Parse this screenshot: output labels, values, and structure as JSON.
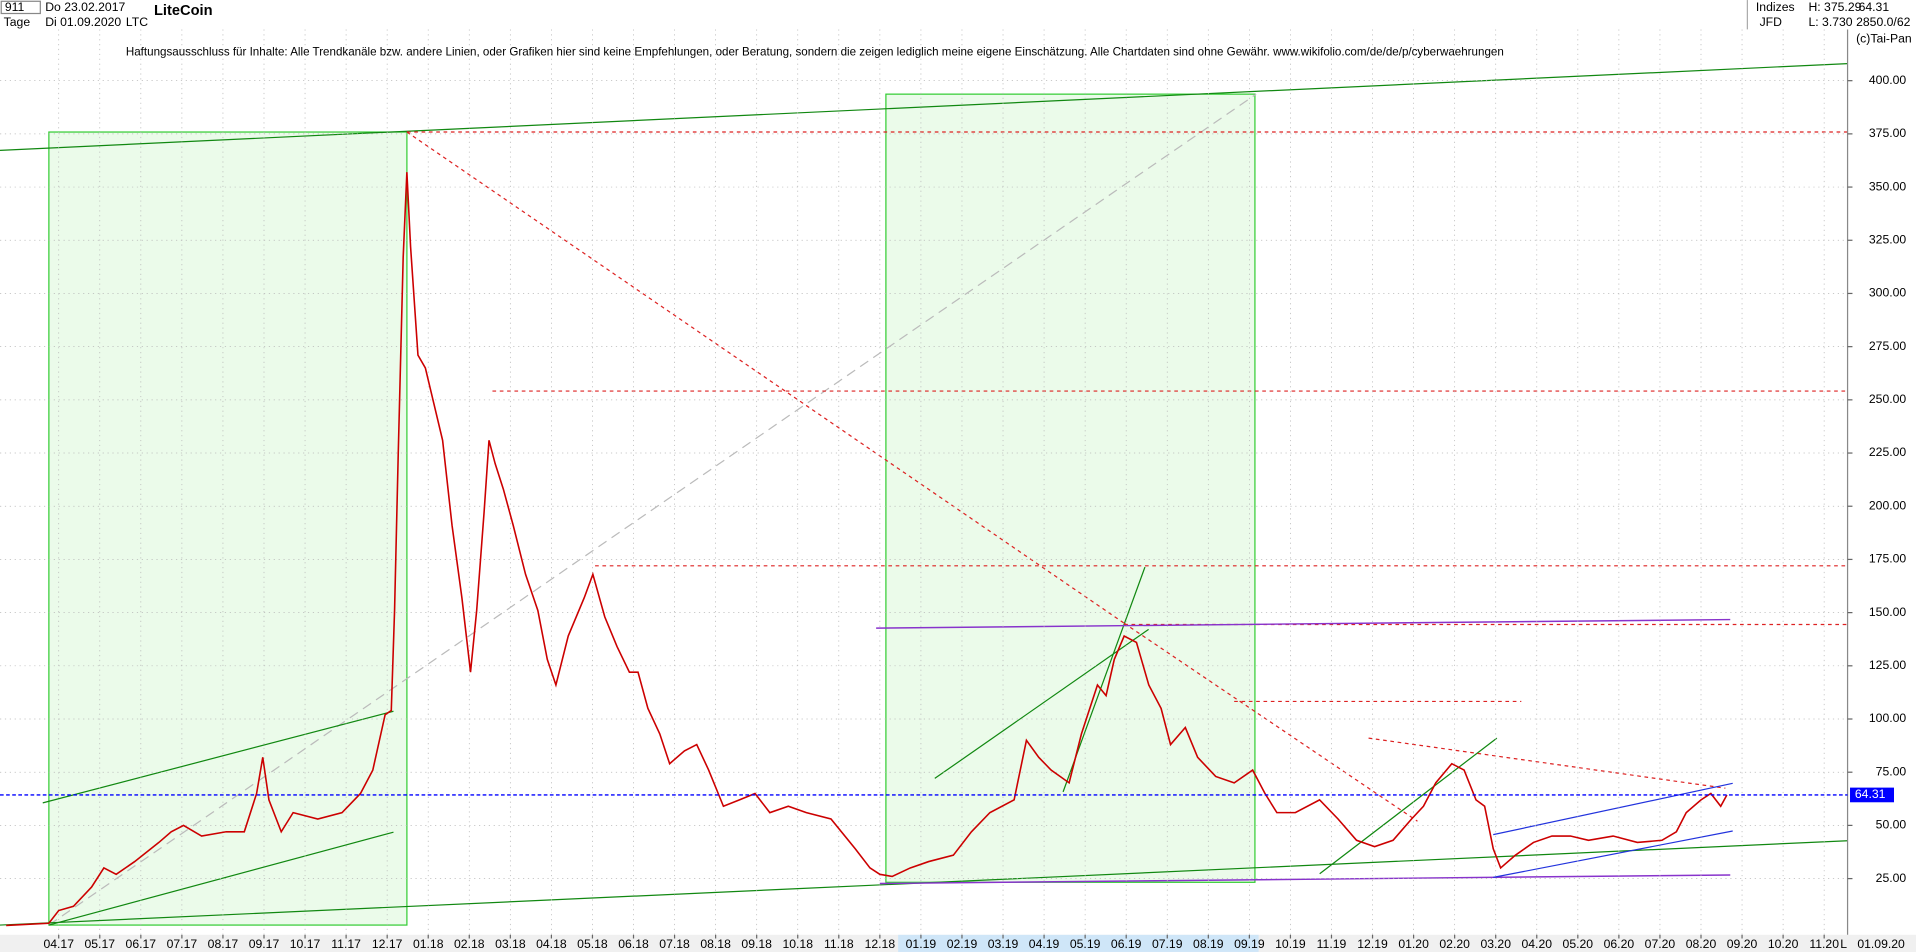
{
  "chart_data": {
    "type": "line",
    "title": "LiteCoin",
    "symbol": "LTC",
    "info": {
      "id": "911",
      "start": "Do 23.02.2017",
      "period": "Tage",
      "end": "Di 01.09.2020",
      "group": "Indizes",
      "source": "JFD",
      "high": "H: 375.29",
      "low": "L: 3.730",
      "last": "64.31",
      "size": "2850.0/62",
      "copyright": "(c)Tai-Pan",
      "axis_mode": "L",
      "axis_date": "01.09.20"
    },
    "disclaimer": "Haftungsausschluss für Inhalte: Alle Trendkanäle bzw. andere Linien, oder Grafiken hier sind keine Empfehlungen, oder Beratung, sondern die zeigen lediglich meine eigene Einschätzung. Alle Chartdaten sind ohne Gewähr.  www.wikifolio.com/de/de/p/cyberwaehrungen",
    "x": [
      -1.28,
      -0.24,
      0,
      0.36,
      0.8,
      1.1,
      1.4,
      1.85,
      2.44,
      2.74,
      3.04,
      3.48,
      4.08,
      4.52,
      4.82,
      4.97,
      5.12,
      5.42,
      5.71,
      6.31,
      6.9,
      7.35,
      7.65,
      7.95,
      8.1,
      8.18,
      8.27,
      8.39,
      8.48,
      8.57,
      8.75,
      8.93,
      9.14,
      9.35,
      9.58,
      9.82,
      10.03,
      10.18,
      10.36,
      10.48,
      10.63,
      10.83,
      11.07,
      11.37,
      11.67,
      11.9,
      12.11,
      12.41,
      12.8,
      13.01,
      13.3,
      13.6,
      13.9,
      14.11,
      14.35,
      14.64,
      14.88,
      15.24,
      15.54,
      15.83,
      16.19,
      16.58,
      16.96,
      17.32,
      17.77,
      18.21,
      18.81,
      19.4,
      19.76,
      20,
      20.3,
      20.74,
      21.19,
      21.79,
      22.23,
      22.68,
      23.27,
      23.57,
      23.87,
      24.17,
      24.61,
      24.91,
      25.3,
      25.51,
      25.71,
      25.95,
      26.25,
      26.55,
      26.85,
      27.08,
      27.44,
      27.74,
      28.18,
      28.63,
      29.08,
      29.38,
      29.67,
      30.12,
      30.71,
      31.16,
      31.61,
      32.05,
      32.5,
      32.95,
      33.24,
      33.54,
      33.93,
      34.23,
      34.52,
      34.73,
      34.94,
      35.12,
      35.48,
      35.92,
      36.37,
      36.82,
      37.26,
      37.86,
      38.45,
      39.05,
      39.4,
      39.64,
      40,
      40.24,
      40.48,
      40.63
    ],
    "series": [
      {
        "name": "LTC",
        "color": "#cc0000",
        "values": [
          3,
          4,
          10,
          12,
          21,
          30,
          27,
          33,
          42,
          47,
          50,
          45,
          47,
          47,
          65,
          82,
          62,
          47,
          56,
          53,
          56,
          65,
          76,
          102,
          104,
          151,
          225,
          317,
          357,
          322,
          271,
          265,
          248,
          231,
          191,
          157,
          122,
          151,
          197,
          231,
          220,
          208,
          191,
          168,
          151,
          128,
          116,
          139,
          157,
          168,
          148,
          134,
          122,
          122,
          105,
          93,
          79,
          85,
          88,
          76,
          59,
          62,
          65,
          56,
          59,
          56,
          53,
          39,
          30,
          27,
          26,
          30,
          33,
          36,
          47,
          56,
          62,
          90,
          82,
          76,
          70,
          93,
          116,
          111,
          128,
          139,
          136,
          116,
          105,
          88,
          96,
          82,
          73,
          70,
          76,
          65,
          56,
          56,
          62,
          53,
          43,
          40,
          43,
          53,
          59,
          70,
          79,
          76,
          62,
          59,
          39,
          30,
          36,
          42,
          45,
          45,
          43,
          45,
          42,
          43,
          47,
          56,
          62,
          65,
          59,
          64.31
        ]
      }
    ],
    "last_color": "#0000ff",
    "xlim": [
      -1.43,
      43.57
    ],
    "xticks": [
      {
        "value": 0,
        "label": "04.17"
      },
      {
        "value": 1,
        "label": "05.17"
      },
      {
        "value": 2,
        "label": "06.17"
      },
      {
        "value": 3,
        "label": "07.17"
      },
      {
        "value": 4,
        "label": "08.17"
      },
      {
        "value": 5,
        "label": "09.17"
      },
      {
        "value": 6,
        "label": "10.17"
      },
      {
        "value": 7,
        "label": "11.17"
      },
      {
        "value": 8,
        "label": "12.17"
      },
      {
        "value": 9,
        "label": "01.18"
      },
      {
        "value": 10,
        "label": "02.18"
      },
      {
        "value": 11,
        "label": "03.18"
      },
      {
        "value": 12,
        "label": "04.18"
      },
      {
        "value": 13,
        "label": "05.18"
      },
      {
        "value": 14,
        "label": "06.18"
      },
      {
        "value": 15,
        "label": "07.18"
      },
      {
        "value": 16,
        "label": "08.18"
      },
      {
        "value": 17,
        "label": "09.18"
      },
      {
        "value": 18,
        "label": "10.18"
      },
      {
        "value": 19,
        "label": "11.18"
      },
      {
        "value": 20,
        "label": "12.18"
      },
      {
        "value": 21,
        "label": "01.19"
      },
      {
        "value": 22,
        "label": "02.19"
      },
      {
        "value": 23,
        "label": "03.19"
      },
      {
        "value": 24,
        "label": "04.19"
      },
      {
        "value": 25,
        "label": "05.19"
      },
      {
        "value": 26,
        "label": "06.19"
      },
      {
        "value": 27,
        "label": "07.19"
      },
      {
        "value": 28,
        "label": "08.19"
      },
      {
        "value": 29,
        "label": "09.19"
      },
      {
        "value": 30,
        "label": "10.19"
      },
      {
        "value": 31,
        "label": "11.19"
      },
      {
        "value": 32,
        "label": "12.19"
      },
      {
        "value": 33,
        "label": "01.20"
      },
      {
        "value": 34,
        "label": "02.20"
      },
      {
        "value": 35,
        "label": "03.20"
      },
      {
        "value": 36,
        "label": "04.20"
      },
      {
        "value": 37,
        "label": "05.20"
      },
      {
        "value": 38,
        "label": "06.20"
      },
      {
        "value": 39,
        "label": "07.20"
      },
      {
        "value": 40,
        "label": "08.20"
      },
      {
        "value": 41,
        "label": "09.20"
      },
      {
        "value": 42,
        "label": "10.20"
      },
      {
        "value": 43,
        "label": "11.20"
      }
    ],
    "ylim": [
      0,
      420
    ],
    "yticks": [
      {
        "value": 25,
        "label": "25.00"
      },
      {
        "value": 50,
        "label": "50.00"
      },
      {
        "value": 75,
        "label": "75.00"
      },
      {
        "value": 100,
        "label": "100.00"
      },
      {
        "value": 125,
        "label": "125.00"
      },
      {
        "value": 150,
        "label": "150.00"
      },
      {
        "value": 175,
        "label": "175.00"
      },
      {
        "value": 200,
        "label": "200.00"
      },
      {
        "value": 225,
        "label": "225.00"
      },
      {
        "value": 250,
        "label": "250.00"
      },
      {
        "value": 275,
        "label": "275.00"
      },
      {
        "value": 300,
        "label": "300.00"
      },
      {
        "value": 325,
        "label": "325.00"
      },
      {
        "value": 350,
        "label": "350.00"
      },
      {
        "value": 375,
        "label": "375.00"
      },
      {
        "value": 400,
        "label": "400.00"
      }
    ],
    "grid": true
  }
}
